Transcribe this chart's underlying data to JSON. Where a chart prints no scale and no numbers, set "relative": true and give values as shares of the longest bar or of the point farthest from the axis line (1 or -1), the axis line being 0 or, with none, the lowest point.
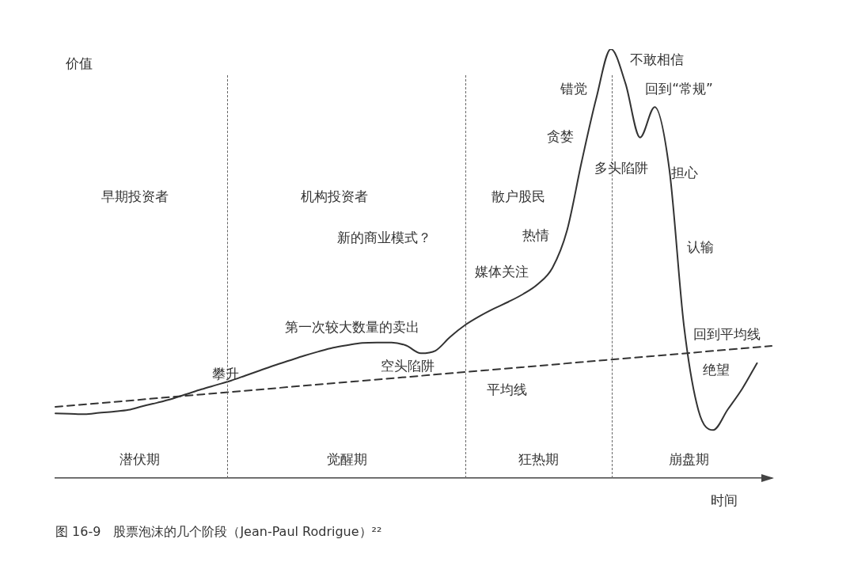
{
  "chart_data": {
    "type": "line",
    "relative": true,
    "xlabel": "时间",
    "ylabel": "价值",
    "marker": "none",
    "categories": [
      null,
      null,
      null,
      null,
      null,
      null,
      null,
      null,
      null,
      null,
      null,
      null,
      null,
      null,
      null,
      null,
      null,
      null,
      null,
      null,
      null,
      null,
      null,
      null,
      null,
      null,
      null,
      null,
      null,
      null,
      null,
      null,
      null,
      null,
      null,
      null,
      null,
      null,
      null,
      null,
      null,
      null,
      null,
      null,
      null,
      null,
      null,
      null,
      null,
      null
    ],
    "series": [
      {
        "color": "#333333",
        "line_style": "solid",
        "values": [
          0.151,
          0.15,
          0.149,
          0.152,
          0.155,
          0.159,
          0.168,
          0.176,
          0.185,
          0.196,
          0.207,
          0.217,
          0.227,
          0.239,
          0.251,
          0.263,
          0.274,
          0.285,
          0.295,
          0.304,
          0.31,
          0.315,
          0.316,
          0.316,
          0.309,
          0.291,
          0.297,
          0.329,
          0.356,
          0.377,
          0.395,
          0.411,
          0.429,
          0.452,
          0.49,
          0.577,
          0.737,
          0.885,
          1,
          0.92,
          0.794,
          0.865,
          0.72,
          0.355,
          0.157,
          0.112,
          0.16,
          0.209,
          0.268,
          null
        ]
      },
      {
        "color": "#333333",
        "line_style": "dashed",
        "values": [
          0.166,
          null,
          null,
          null,
          null,
          null,
          null,
          null,
          null,
          null,
          null,
          null,
          null,
          null,
          null,
          null,
          null,
          null,
          null,
          null,
          null,
          null,
          null,
          null,
          null,
          null,
          null,
          null,
          null,
          null,
          null,
          null,
          null,
          null,
          null,
          null,
          null,
          null,
          null,
          null,
          null,
          null,
          null,
          null,
          null,
          null,
          null,
          null,
          null,
          0.308
        ]
      }
    ],
    "annotations": [
      "早期投资者",
      "机构投资者",
      "新的商业模式？",
      "第一次较大数量的卖出",
      "攀升",
      "空头陷阱",
      "平均线",
      "媒体关注",
      "热情",
      "散户股民",
      "贪婪",
      "错觉",
      "不敢相信",
      "回到“常规”",
      "多头陷阱",
      "担心",
      "认输",
      "回到平均线",
      "绝望",
      "潜伏期",
      "觉醒期",
      "狂热期",
      "崩盘期",
      "图 16-9　股票泡沫的几个阶段（Jean-Paul Rodrigue）²²"
    ]
  }
}
